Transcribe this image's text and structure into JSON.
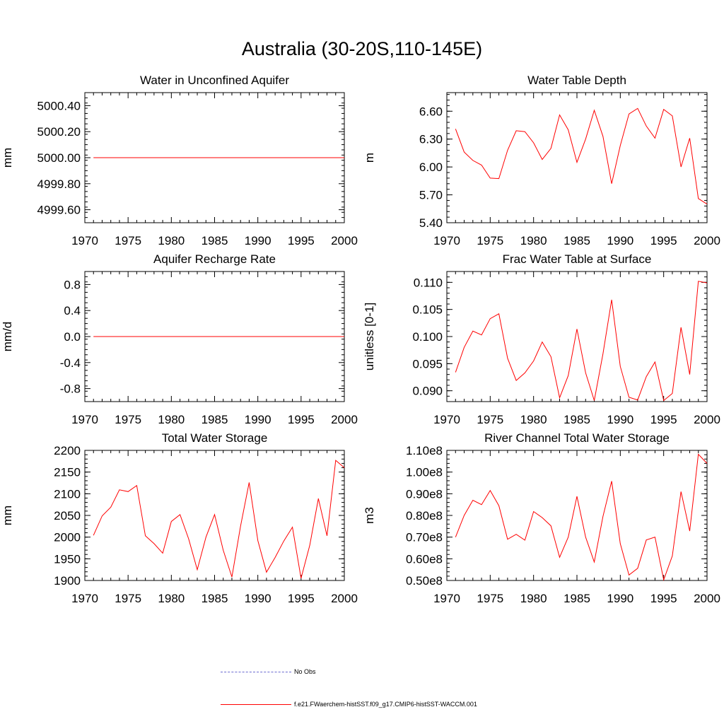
{
  "figure": {
    "title": "Australia (30-20S,110-145E)"
  },
  "legend": {
    "items": [
      {
        "label": "No Obs",
        "color": "#6a6ad0",
        "style": "dashed"
      },
      {
        "label": "f.e21.FWaerchem-histSST.f09_g17.CMIP6-histSST-WACCM.001",
        "color": "#ff0000",
        "style": "solid"
      }
    ]
  },
  "chart_data": [
    {
      "type": "line",
      "title": "Water in Unconfined Aquifer",
      "ylabel": "mm",
      "xlim": [
        1970,
        2000
      ],
      "ylim": [
        4999.5,
        5000.5
      ],
      "xticks": [
        1970,
        1975,
        1980,
        1985,
        1990,
        1995,
        2000
      ],
      "xtick_labels": [
        "1970",
        "1975",
        "1980",
        "1985",
        "1990",
        "1995",
        "2000"
      ],
      "yticks": [
        4999.6,
        4999.8,
        5000.0,
        5000.2,
        5000.4
      ],
      "ytick_labels": [
        "4999.60",
        "4999.80",
        "5000.00",
        "5000.20",
        "5000.40"
      ],
      "series": [
        {
          "color": "#ff0000",
          "x": [
            1971,
            1972,
            1973,
            1974,
            1975,
            1976,
            1977,
            1978,
            1979,
            1980,
            1981,
            1982,
            1983,
            1984,
            1985,
            1986,
            1987,
            1988,
            1989,
            1990,
            1991,
            1992,
            1993,
            1994,
            1995,
            1996,
            1997,
            1998,
            1999,
            2000
          ],
          "y": [
            5000,
            5000,
            5000,
            5000,
            5000,
            5000,
            5000,
            5000,
            5000,
            5000,
            5000,
            5000,
            5000,
            5000,
            5000,
            5000,
            5000,
            5000,
            5000,
            5000,
            5000,
            5000,
            5000,
            5000,
            5000,
            5000,
            5000,
            5000,
            5000,
            5000
          ]
        }
      ]
    },
    {
      "type": "line",
      "title": "Water Table Depth",
      "ylabel": "m",
      "xlim": [
        1970,
        2000
      ],
      "ylim": [
        5.4,
        6.8
      ],
      "xticks": [
        1970,
        1975,
        1980,
        1985,
        1990,
        1995,
        2000
      ],
      "xtick_labels": [
        "1970",
        "1975",
        "1980",
        "1985",
        "1990",
        "1995",
        "2000"
      ],
      "yticks": [
        5.4,
        5.7,
        6.0,
        6.3,
        6.6
      ],
      "ytick_labels": [
        "5.40",
        "5.70",
        "6.00",
        "6.30",
        "6.60"
      ],
      "series": [
        {
          "color": "#ff0000",
          "x": [
            1971,
            1972,
            1973,
            1974,
            1975,
            1976,
            1977,
            1978,
            1979,
            1980,
            1981,
            1982,
            1983,
            1984,
            1985,
            1986,
            1987,
            1988,
            1989,
            1990,
            1991,
            1992,
            1993,
            1994,
            1995,
            1996,
            1997,
            1998,
            1999,
            2000
          ],
          "y": [
            6.41,
            6.16,
            6.07,
            6.02,
            5.88,
            5.875,
            6.18,
            6.39,
            6.38,
            6.26,
            6.08,
            6.2,
            6.56,
            6.4,
            6.05,
            6.3,
            6.61,
            6.33,
            5.82,
            6.23,
            6.57,
            6.63,
            6.44,
            6.31,
            6.62,
            6.55,
            6.0,
            6.31,
            5.66,
            5.6
          ]
        }
      ]
    },
    {
      "type": "line",
      "title": "Aquifer Recharge Rate",
      "ylabel": "mm/d",
      "xlim": [
        1970,
        2000
      ],
      "ylim": [
        -1.0,
        1.0
      ],
      "xticks": [
        1970,
        1975,
        1980,
        1985,
        1990,
        1995,
        2000
      ],
      "xtick_labels": [
        "1970",
        "1975",
        "1980",
        "1985",
        "1990",
        "1995",
        "2000"
      ],
      "yticks": [
        -0.8,
        -0.4,
        0.0,
        0.4,
        0.8
      ],
      "ytick_labels": [
        "-0.8",
        "-0.4",
        "0.0",
        "0.4",
        "0.8"
      ],
      "series": [
        {
          "color": "#ff0000",
          "x": [
            1971,
            1972,
            1973,
            1974,
            1975,
            1976,
            1977,
            1978,
            1979,
            1980,
            1981,
            1982,
            1983,
            1984,
            1985,
            1986,
            1987,
            1988,
            1989,
            1990,
            1991,
            1992,
            1993,
            1994,
            1995,
            1996,
            1997,
            1998,
            1999,
            2000
          ],
          "y": [
            0,
            0,
            0,
            0,
            0,
            0,
            0,
            0,
            0,
            0,
            0,
            0,
            0,
            0,
            0,
            0,
            0,
            0,
            0,
            0,
            0,
            0,
            0,
            0,
            0,
            0,
            0,
            0,
            0,
            0
          ]
        }
      ]
    },
    {
      "type": "line",
      "title": "Frac Water Table at Surface",
      "ylabel": "unitless [0-1]",
      "xlim": [
        1970,
        2000
      ],
      "ylim": [
        0.088,
        0.112
      ],
      "xticks": [
        1970,
        1975,
        1980,
        1985,
        1990,
        1995,
        2000
      ],
      "xtick_labels": [
        "1970",
        "1975",
        "1980",
        "1985",
        "1990",
        "1995",
        "2000"
      ],
      "yticks": [
        0.09,
        0.095,
        0.1,
        0.105,
        0.11
      ],
      "ytick_labels": [
        "0.090",
        "0.095",
        "0.100",
        "0.105",
        "0.110"
      ],
      "series": [
        {
          "color": "#ff0000",
          "x": [
            1971,
            1972,
            1973,
            1974,
            1975,
            1976,
            1977,
            1978,
            1979,
            1980,
            1981,
            1982,
            1983,
            1984,
            1985,
            1986,
            1987,
            1988,
            1989,
            1990,
            1991,
            1992,
            1993,
            1994,
            1995,
            1996,
            1997,
            1998,
            1999,
            2000
          ],
          "y": [
            0.0934,
            0.098,
            0.101,
            0.1003,
            0.1033,
            0.1042,
            0.096,
            0.0919,
            0.0933,
            0.0955,
            0.099,
            0.0963,
            0.0887,
            0.0928,
            0.1014,
            0.0933,
            0.0882,
            0.0968,
            0.1068,
            0.0945,
            0.0888,
            0.0883,
            0.0926,
            0.0953,
            0.0882,
            0.0895,
            0.1017,
            0.093,
            0.1102,
            0.1099
          ]
        }
      ]
    },
    {
      "type": "line",
      "title": "Total Water Storage",
      "ylabel": "mm",
      "xlim": [
        1970,
        2000
      ],
      "ylim": [
        1900,
        2200
      ],
      "xticks": [
        1970,
        1975,
        1980,
        1985,
        1990,
        1995,
        2000
      ],
      "xtick_labels": [
        "1970",
        "1975",
        "1980",
        "1985",
        "1990",
        "1995",
        "2000"
      ],
      "yticks": [
        1900,
        1950,
        2000,
        2050,
        2100,
        2150,
        2200
      ],
      "ytick_labels": [
        "1900",
        "1950",
        "2000",
        "2050",
        "2100",
        "2150",
        "2200"
      ],
      "series": [
        {
          "color": "#ff0000",
          "x": [
            1971,
            1972,
            1973,
            1974,
            1975,
            1976,
            1977,
            1978,
            1979,
            1980,
            1981,
            1982,
            1983,
            1984,
            1985,
            1986,
            1987,
            1988,
            1989,
            1990,
            1991,
            1992,
            1993,
            1994,
            1995,
            1996,
            1997,
            1998,
            1999,
            2000
          ],
          "y": [
            2004,
            2049,
            2069,
            2109,
            2105,
            2119,
            2003,
            1985,
            1963,
            2036,
            2052,
            1996,
            1925,
            2000,
            2052,
            1970,
            1908,
            2025,
            2126,
            1992,
            1919,
            1953,
            1991,
            2023,
            1905,
            1981,
            2089,
            2003,
            2177,
            2160
          ]
        }
      ]
    },
    {
      "type": "line",
      "title": "River Channel Total Water Storage",
      "ylabel": "m3",
      "xlim": [
        1970,
        2000
      ],
      "ylim": [
        50000000.0,
        110000000.0
      ],
      "xticks": [
        1970,
        1975,
        1980,
        1985,
        1990,
        1995,
        2000
      ],
      "xtick_labels": [
        "1970",
        "1975",
        "1980",
        "1985",
        "1990",
        "1995",
        "2000"
      ],
      "yticks": [
        50000000.0,
        60000000.0,
        70000000.0,
        80000000.0,
        90000000.0,
        100000000.0,
        110000000.0
      ],
      "ytick_labels": [
        "0.50e8",
        "0.60e8",
        "0.70e8",
        "0.80e8",
        "0.90e8",
        "1.00e8",
        "1.10e8"
      ],
      "series": [
        {
          "color": "#ff0000",
          "x": [
            1971,
            1972,
            1973,
            1974,
            1975,
            1976,
            1977,
            1978,
            1979,
            1980,
            1981,
            1982,
            1983,
            1984,
            1985,
            1986,
            1987,
            1988,
            1989,
            1990,
            1991,
            1992,
            1993,
            1994,
            1995,
            1996,
            1997,
            1998,
            1999,
            2000
          ],
          "y": [
            70000000.0,
            80000000.0,
            87000000.0,
            85000000.0,
            91500000.0,
            84500000.0,
            69000000.0,
            71300000.0,
            68600000.0,
            81800000.0,
            79000000.0,
            75200000.0,
            60700000.0,
            70000000.0,
            88800000.0,
            70000000.0,
            58500000.0,
            79500000.0,
            95800000.0,
            67000000.0,
            52500000.0,
            55600000.0,
            68700000.0,
            70000000.0,
            50300000.0,
            61300000.0,
            91000000.0,
            72800000.0,
            108200000.0,
            104000000.0
          ]
        }
      ]
    }
  ]
}
